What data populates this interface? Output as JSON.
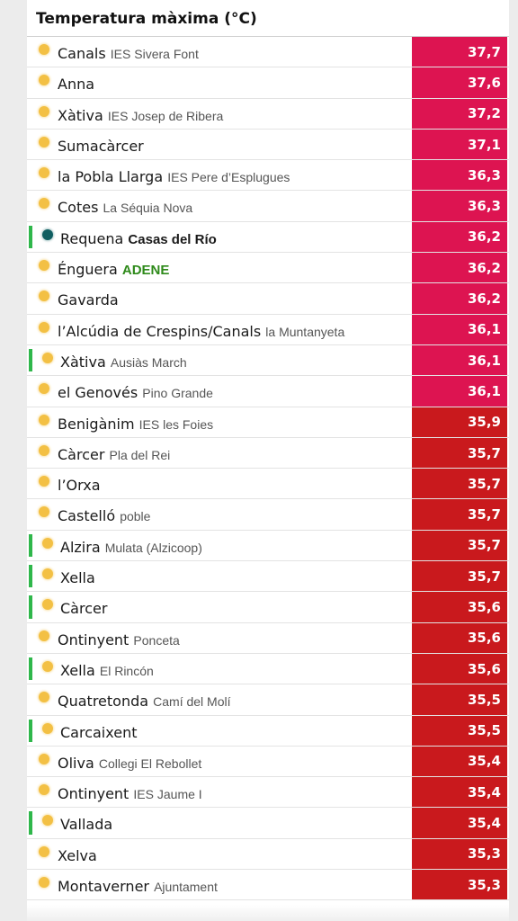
{
  "header": {
    "title": "Temperatura màxima (°C)"
  },
  "colors": {
    "pink": "#dd1451",
    "red": "#c9191d",
    "marker": "#2fb74b",
    "sun": "#f3c044",
    "teal": "#0f5e61"
  },
  "rows": [
    {
      "name": "Canals",
      "place": "IES Sivera Font",
      "value": "37,7"
    },
    {
      "name": "Anna",
      "place": "",
      "value": "37,6"
    },
    {
      "name": "Xàtiva",
      "place": "IES Josep de Ribera",
      "value": "37,2"
    },
    {
      "name": "Sumacàrcer",
      "place": "",
      "value": "37,1"
    },
    {
      "name": "la Pobla Llarga",
      "place": "IES Pere d’Esplugues",
      "value": "36,3"
    },
    {
      "name": "Cotes",
      "place": "La Séquia Nova",
      "value": "36,3"
    },
    {
      "name": "Requena",
      "place": "Casas del Río",
      "value": "36,2"
    },
    {
      "name": "Énguera",
      "place": "ADENE",
      "value": "36,2"
    },
    {
      "name": "Gavarda",
      "place": "",
      "value": "36,2"
    },
    {
      "name": "l’Alcúdia de Crespins/Canals",
      "place": "la Muntanyeta",
      "value": "36,1"
    },
    {
      "name": "Xàtiva",
      "place": "Ausiàs March",
      "value": "36,1"
    },
    {
      "name": "el Genovés",
      "place": "Pino Grande",
      "value": "36,1"
    },
    {
      "name": "Benigànim",
      "place": "IES les Foies",
      "value": "35,9"
    },
    {
      "name": "Càrcer",
      "place": "Pla del Rei",
      "value": "35,7"
    },
    {
      "name": "l’Orxa",
      "place": "",
      "value": "35,7"
    },
    {
      "name": "Castelló",
      "place": "poble",
      "value": "35,7"
    },
    {
      "name": "Alzira",
      "place": "Mulata (Alzicoop)",
      "value": "35,7"
    },
    {
      "name": "Xella",
      "place": "",
      "value": "35,7"
    },
    {
      "name": "Càrcer",
      "place": "",
      "value": "35,6"
    },
    {
      "name": "Ontinyent",
      "place": "Ponceta",
      "value": "35,6"
    },
    {
      "name": "Xella",
      "place": "El Rincón",
      "value": "35,6"
    },
    {
      "name": "Quatretonda",
      "place": "Camí del Molí",
      "value": "35,5"
    },
    {
      "name": "Carcaixent",
      "place": "",
      "value": "35,5"
    },
    {
      "name": "Oliva",
      "place": "Collegi El Rebollet",
      "value": "35,4"
    },
    {
      "name": "Ontinyent",
      "place": "IES Jaume I",
      "value": "35,4"
    },
    {
      "name": "Vallada",
      "place": "",
      "value": "35,4"
    },
    {
      "name": "Xelva",
      "place": "",
      "value": "35,3"
    },
    {
      "name": "Montaverner",
      "place": "Ajuntament",
      "value": "35,3"
    }
  ]
}
